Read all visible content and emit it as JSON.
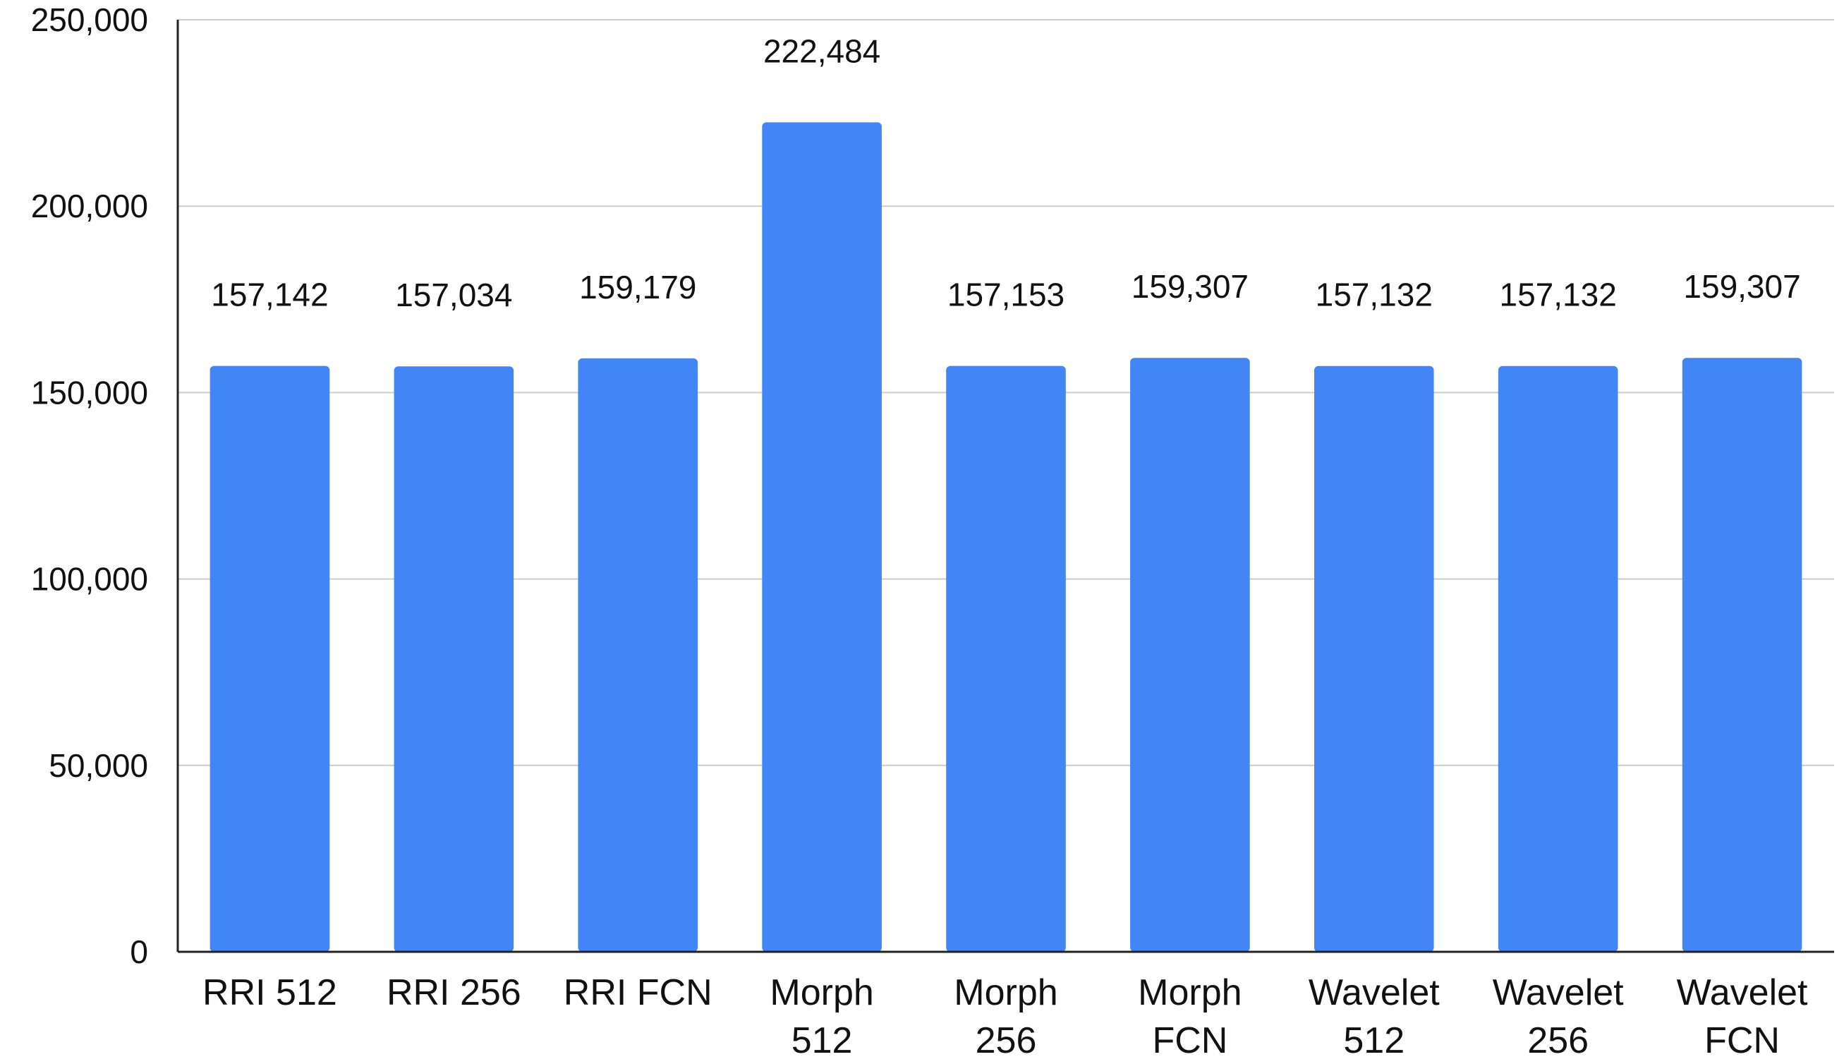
{
  "colors": {
    "bar": "#4285f4",
    "grid": "#cccccc",
    "axis": "#222222",
    "text": "#111111"
  },
  "chart_data": {
    "type": "bar",
    "title": "",
    "xlabel": "",
    "ylabel": "",
    "ylim": [
      0,
      250000
    ],
    "yticks": [
      {
        "value": 0,
        "label": "0"
      },
      {
        "value": 50000,
        "label": "50,000"
      },
      {
        "value": 100000,
        "label": "100,000"
      },
      {
        "value": 150000,
        "label": "150,000"
      },
      {
        "value": 200000,
        "label": "200,000"
      },
      {
        "value": 250000,
        "label": "250,000"
      }
    ],
    "grid": true,
    "legend": "none",
    "categories": [
      [
        "RRI 512"
      ],
      [
        "RRI 256"
      ],
      [
        "RRI FCN"
      ],
      [
        "Morph",
        "512"
      ],
      [
        "Morph",
        "256"
      ],
      [
        "Morph",
        "FCN"
      ],
      [
        "Wavelet",
        "512"
      ],
      [
        "Wavelet",
        "256"
      ],
      [
        "Wavelet",
        "FCN"
      ]
    ],
    "values": [
      157142,
      157034,
      159179,
      222484,
      157153,
      159307,
      157132,
      157132,
      159307
    ],
    "data_labels": [
      "157,142",
      "157,034",
      "159,179",
      "222,484",
      "157,153",
      "159,307",
      "157,132",
      "157,132",
      "159,307"
    ]
  }
}
